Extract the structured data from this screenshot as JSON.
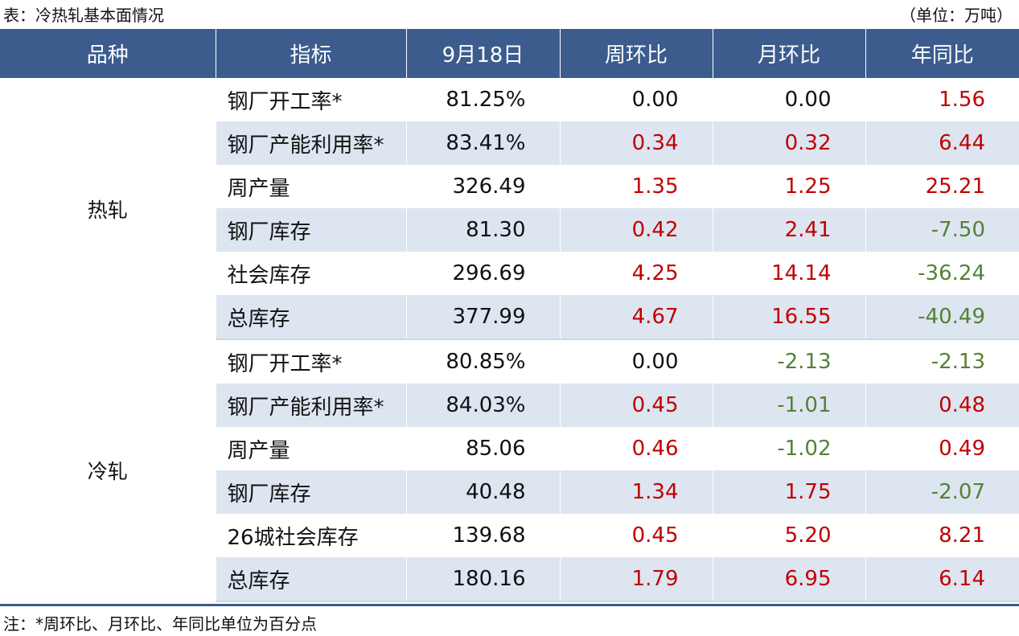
{
  "caption": "表：冷热轧基本面情况",
  "unit": "（单位：万吨）",
  "headers": [
    "品种",
    "指标",
    "9月18日",
    "周环比",
    "月环比",
    "年同比"
  ],
  "groups": [
    {
      "variety": "热轧",
      "rows": [
        {
          "indicator": "钢厂开工率*",
          "value": "81.25%",
          "wow": "0.00",
          "mom": "0.00",
          "yoy": "1.56"
        },
        {
          "indicator": "钢厂产能利用率*",
          "value": "83.41%",
          "wow": "0.34",
          "mom": "0.32",
          "yoy": "6.44"
        },
        {
          "indicator": "周产量",
          "value": "326.49",
          "wow": "1.35",
          "mom": "1.25",
          "yoy": "25.21"
        },
        {
          "indicator": "钢厂库存",
          "value": "81.30",
          "wow": "0.42",
          "mom": "2.41",
          "yoy": "-7.50"
        },
        {
          "indicator": "社会库存",
          "value": "296.69",
          "wow": "4.25",
          "mom": "14.14",
          "yoy": "-36.24"
        },
        {
          "indicator": "总库存",
          "value": "377.99",
          "wow": "4.67",
          "mom": "16.55",
          "yoy": "-40.49"
        }
      ]
    },
    {
      "variety": "冷轧",
      "rows": [
        {
          "indicator": "钢厂开工率*",
          "value": "80.85%",
          "wow": "0.00",
          "mom": "-2.13",
          "yoy": "-2.13"
        },
        {
          "indicator": "钢厂产能利用率*",
          "value": "84.03%",
          "wow": "0.45",
          "mom": "-1.01",
          "yoy": "0.48"
        },
        {
          "indicator": "周产量",
          "value": "85.06",
          "wow": "0.46",
          "mom": "-1.02",
          "yoy": "0.49"
        },
        {
          "indicator": "钢厂库存",
          "value": "40.48",
          "wow": "1.34",
          "mom": "1.75",
          "yoy": "-2.07"
        },
        {
          "indicator": "26城社会库存",
          "value": "139.68",
          "wow": "0.45",
          "mom": "5.20",
          "yoy": "8.21"
        },
        {
          "indicator": "总库存",
          "value": "180.16",
          "wow": "1.79",
          "mom": "6.95",
          "yoy": "6.14"
        }
      ]
    }
  ],
  "footnote": "注：*周环比、月环比、年同比单位为百分点",
  "colors": {
    "header_bg": "#3b5c8d",
    "row_shade": "#dde5f1",
    "positive": "#c00000",
    "negative": "#548235"
  }
}
